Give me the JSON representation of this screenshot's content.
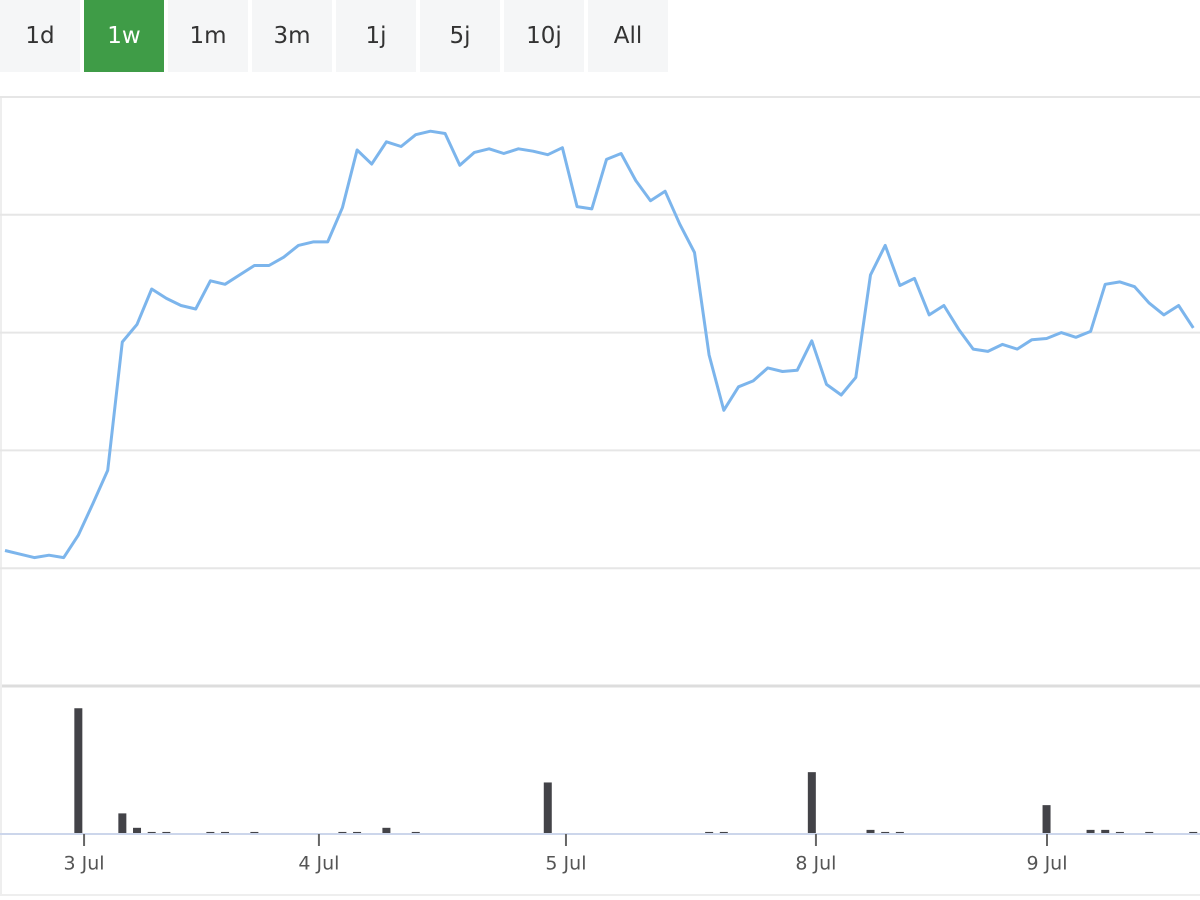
{
  "buttons": [
    "1d",
    "1w",
    "1m",
    "3m",
    "1j",
    "5j",
    "10j",
    "All"
  ],
  "selected": 1,
  "chart_data": [
    {
      "type": "line",
      "color": "#7cb5ec",
      "xlim": [
        -0.34,
        81.46
      ],
      "ylim": [
        0,
        5
      ],
      "yticks": [
        1,
        2,
        3,
        4,
        5
      ],
      "grid": true,
      "values": [
        1.15,
        1.12,
        1.09,
        1.11,
        1.09,
        1.28,
        1.55,
        1.83,
        2.92,
        3.07,
        3.37,
        3.29,
        3.23,
        3.2,
        3.44,
        3.41,
        3.49,
        3.57,
        3.57,
        3.64,
        3.74,
        3.77,
        3.77,
        4.06,
        4.55,
        4.43,
        4.62,
        4.58,
        4.68,
        4.71,
        4.69,
        4.42,
        4.53,
        4.56,
        4.52,
        4.56,
        4.54,
        4.51,
        4.57,
        4.07,
        4.05,
        4.47,
        4.52,
        4.29,
        4.12,
        4.2,
        3.92,
        3.68,
        2.81,
        2.34,
        2.54,
        2.59,
        2.7,
        2.67,
        2.68,
        2.93,
        2.56,
        2.47,
        2.62,
        3.49,
        3.74,
        3.4,
        3.46,
        3.15,
        3.23,
        3.03,
        2.86,
        2.84,
        2.9,
        2.86,
        2.94,
        2.95,
        3.0,
        2.96,
        3.01,
        3.41,
        3.43,
        3.39,
        3.25,
        3.15,
        3.23,
        3.04
      ]
    },
    {
      "type": "bar",
      "color": "#434348",
      "xlim": [
        -0.34,
        81.46
      ],
      "ylim": [
        0,
        130
      ],
      "x": [
        5,
        8,
        9,
        10,
        11,
        14,
        15,
        17,
        23,
        24,
        26,
        28,
        37,
        48,
        49,
        55,
        59,
        60,
        61,
        71,
        74,
        75,
        76,
        78,
        81
      ],
      "values": [
        122,
        20,
        6,
        2,
        2,
        2,
        2,
        2,
        2,
        2,
        6,
        2,
        50,
        2,
        2,
        60,
        4,
        2,
        2,
        28,
        4,
        4,
        2,
        2,
        2
      ],
      "xticks": [
        {
          "value": 5.39,
          "label": "3 Jul"
        },
        {
          "value": 21.4,
          "label": "4 Jul"
        },
        {
          "value": 38.24,
          "label": "5 Jul"
        },
        {
          "value": 55.28,
          "label": "8 Jul"
        },
        {
          "value": 71.03,
          "label": "9 Jul"
        }
      ]
    }
  ]
}
